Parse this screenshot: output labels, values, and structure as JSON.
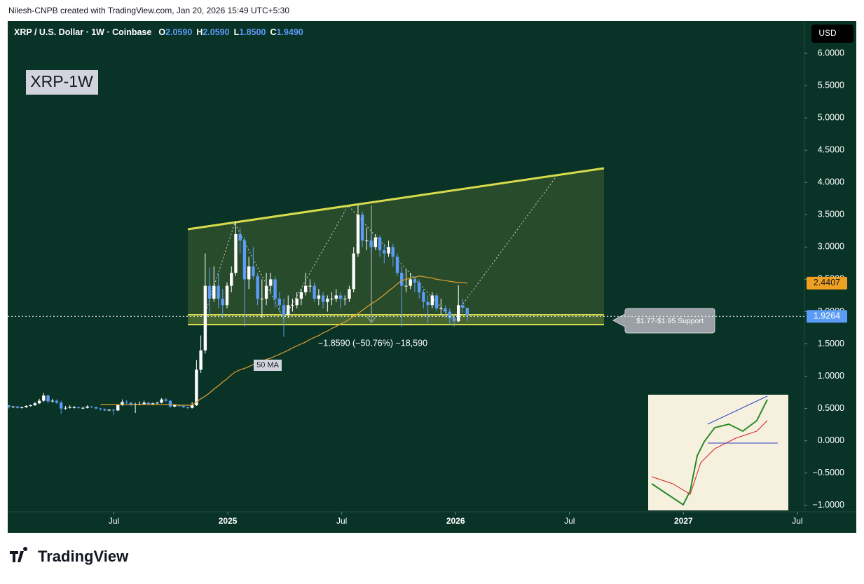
{
  "credit": "Nilesh-CNPB created with TradingView.com, Jan 20, 2026 15:49 UTC+5:30",
  "logo_text": "TradingView",
  "chart_data": {
    "type": "candlestick",
    "symbol": "XRP / U.S. Dollar",
    "interval": "1W",
    "exchange": "Coinbase",
    "ohlc_keys": [
      "O",
      "H",
      "L",
      "C"
    ],
    "ohlc_values": [
      "2.0590",
      "2.0590",
      "1.8500",
      "1.9490"
    ],
    "badge": "XRP-1W",
    "currency": "USD",
    "ma_label": "50 MA",
    "support_label": "$1.77-$1.95 Support",
    "measure_label": "−1.8590 (−50.76%) −18,590",
    "last_price": 1.9264,
    "up_color": "#ffffff",
    "down_color": "#5b9cf6",
    "ma_color": "#e0a030",
    "xlim": [
      "2024-01",
      "2027-08"
    ],
    "xticks": [
      {
        "value": "2024-07",
        "label": "Jul"
      },
      {
        "value": "2025-01",
        "label": "2025"
      },
      {
        "value": "2025-07",
        "label": "Jul"
      },
      {
        "value": "2026-01",
        "label": "2026"
      },
      {
        "value": "2026-07",
        "label": "Jul"
      },
      {
        "value": "2027-01",
        "label": "2027"
      },
      {
        "value": "2027-07",
        "label": "Jul"
      }
    ],
    "ylim": [
      -1.1,
      6.5
    ],
    "yticks": [
      {
        "value": -1,
        "label": "−1.0000"
      },
      {
        "value": -0.5,
        "label": "−0.5000"
      },
      {
        "value": 0,
        "label": "0.0000"
      },
      {
        "value": 0.5,
        "label": "0.5000"
      },
      {
        "value": 1,
        "label": "1.0000"
      },
      {
        "value": 1.5,
        "label": "1.5000"
      },
      {
        "value": 2,
        "label": "2.0000"
      },
      {
        "value": 2.5,
        "label": "2.5000"
      },
      {
        "value": 3,
        "label": "3.0000"
      },
      {
        "value": 3.5,
        "label": "3.5000"
      },
      {
        "value": 4,
        "label": "4.0000"
      },
      {
        "value": 4.5,
        "label": "4.5000"
      },
      {
        "value": 5,
        "label": "5.0000"
      },
      {
        "value": 5.5,
        "label": "5.5000"
      },
      {
        "value": 6,
        "label": "6.0000"
      }
    ],
    "candles": [
      [
        0.6,
        0.62,
        0.56,
        0.57
      ],
      [
        0.57,
        0.58,
        0.53,
        0.55
      ],
      [
        0.55,
        0.56,
        0.5,
        0.52
      ],
      [
        0.52,
        0.54,
        0.51,
        0.53
      ],
      [
        0.53,
        0.54,
        0.5,
        0.51
      ],
      [
        0.51,
        0.53,
        0.5,
        0.52
      ],
      [
        0.52,
        0.55,
        0.51,
        0.54
      ],
      [
        0.54,
        0.56,
        0.53,
        0.55
      ],
      [
        0.55,
        0.6,
        0.54,
        0.58
      ],
      [
        0.58,
        0.65,
        0.57,
        0.62
      ],
      [
        0.62,
        0.74,
        0.6,
        0.7
      ],
      [
        0.7,
        0.71,
        0.58,
        0.61
      ],
      [
        0.61,
        0.65,
        0.59,
        0.62
      ],
      [
        0.62,
        0.64,
        0.57,
        0.59
      ],
      [
        0.59,
        0.62,
        0.42,
        0.5
      ],
      [
        0.5,
        0.54,
        0.48,
        0.51
      ],
      [
        0.51,
        0.55,
        0.5,
        0.52
      ],
      [
        0.52,
        0.54,
        0.5,
        0.52
      ],
      [
        0.52,
        0.53,
        0.49,
        0.51
      ],
      [
        0.51,
        0.53,
        0.49,
        0.51
      ],
      [
        0.51,
        0.55,
        0.5,
        0.53
      ],
      [
        0.53,
        0.54,
        0.51,
        0.52
      ],
      [
        0.52,
        0.53,
        0.49,
        0.5
      ],
      [
        0.5,
        0.51,
        0.47,
        0.49
      ],
      [
        0.49,
        0.5,
        0.46,
        0.47
      ],
      [
        0.47,
        0.49,
        0.46,
        0.48
      ],
      [
        0.48,
        0.49,
        0.4,
        0.47
      ],
      [
        0.47,
        0.56,
        0.46,
        0.55
      ],
      [
        0.55,
        0.64,
        0.54,
        0.6
      ],
      [
        0.6,
        0.63,
        0.57,
        0.59
      ],
      [
        0.59,
        0.6,
        0.54,
        0.56
      ],
      [
        0.56,
        0.59,
        0.43,
        0.57
      ],
      [
        0.57,
        0.61,
        0.55,
        0.57
      ],
      [
        0.57,
        0.62,
        0.56,
        0.59
      ],
      [
        0.59,
        0.6,
        0.56,
        0.57
      ],
      [
        0.57,
        0.59,
        0.55,
        0.58
      ],
      [
        0.58,
        0.6,
        0.57,
        0.59
      ],
      [
        0.59,
        0.66,
        0.58,
        0.64
      ],
      [
        0.64,
        0.66,
        0.6,
        0.62
      ],
      [
        0.62,
        0.63,
        0.51,
        0.53
      ],
      [
        0.53,
        0.56,
        0.52,
        0.55
      ],
      [
        0.55,
        0.56,
        0.52,
        0.54
      ],
      [
        0.54,
        0.55,
        0.51,
        0.52
      ],
      [
        0.52,
        0.53,
        0.49,
        0.51
      ],
      [
        0.51,
        0.6,
        0.5,
        0.55
      ],
      [
        0.55,
        1.25,
        0.54,
        1.1
      ],
      [
        1.1,
        1.63,
        1.05,
        1.4
      ],
      [
        1.4,
        2.9,
        1.35,
        2.4
      ],
      [
        2.4,
        2.68,
        1.95,
        2.2
      ],
      [
        2.2,
        2.7,
        2.15,
        2.4
      ],
      [
        2.4,
        2.6,
        2.05,
        2.2
      ],
      [
        2.2,
        2.35,
        1.9,
        2.1
      ],
      [
        2.1,
        2.45,
        2.05,
        2.4
      ],
      [
        2.4,
        2.7,
        2.3,
        2.6
      ],
      [
        2.6,
        3.4,
        2.55,
        3.2
      ],
      [
        3.2,
        3.3,
        2.9,
        3.1
      ],
      [
        3.1,
        3.15,
        1.77,
        2.5
      ],
      [
        2.5,
        2.85,
        2.35,
        2.7
      ],
      [
        2.7,
        3.0,
        2.5,
        2.55
      ],
      [
        2.55,
        2.6,
        2.1,
        2.2
      ],
      [
        2.2,
        2.5,
        1.9,
        2.2
      ],
      [
        2.2,
        2.6,
        2.1,
        2.4
      ],
      [
        2.4,
        2.6,
        2.3,
        2.5
      ],
      [
        2.5,
        2.55,
        2.05,
        2.2
      ],
      [
        2.2,
        2.3,
        2.0,
        2.1
      ],
      [
        2.1,
        2.2,
        1.61,
        1.95
      ],
      [
        1.95,
        2.25,
        1.9,
        2.1
      ],
      [
        2.1,
        2.2,
        2.0,
        2.1
      ],
      [
        2.1,
        2.3,
        2.05,
        2.2
      ],
      [
        2.2,
        2.35,
        2.1,
        2.3
      ],
      [
        2.3,
        2.6,
        2.25,
        2.4
      ],
      [
        2.4,
        2.5,
        2.3,
        2.4
      ],
      [
        2.4,
        2.45,
        2.15,
        2.2
      ],
      [
        2.2,
        2.35,
        2.1,
        2.25
      ],
      [
        2.25,
        2.3,
        2.05,
        2.15
      ],
      [
        2.15,
        2.25,
        2.0,
        2.2
      ],
      [
        2.2,
        2.3,
        2.1,
        2.2
      ],
      [
        2.2,
        2.35,
        2.15,
        2.25
      ],
      [
        2.25,
        2.3,
        2.05,
        2.2
      ],
      [
        2.2,
        2.25,
        2.1,
        2.2
      ],
      [
        2.2,
        2.4,
        2.15,
        2.35
      ],
      [
        2.35,
        3.0,
        2.3,
        2.9
      ],
      [
        2.9,
        3.65,
        2.85,
        3.5
      ],
      [
        3.5,
        3.55,
        3.0,
        3.1
      ],
      [
        3.1,
        3.3,
        2.95,
        3.1
      ],
      [
        3.1,
        3.2,
        2.9,
        3.0
      ],
      [
        3.0,
        3.2,
        2.95,
        3.15
      ],
      [
        3.15,
        3.18,
        2.85,
        2.95
      ],
      [
        2.95,
        3.05,
        2.75,
        2.9
      ],
      [
        2.9,
        3.1,
        2.85,
        3.0
      ],
      [
        3.0,
        3.05,
        2.7,
        2.85
      ],
      [
        2.85,
        2.9,
        2.55,
        2.6
      ],
      [
        2.6,
        2.7,
        1.77,
        2.4
      ],
      [
        2.4,
        2.65,
        2.3,
        2.4
      ],
      [
        2.4,
        2.6,
        2.35,
        2.5
      ],
      [
        2.5,
        2.55,
        2.3,
        2.45
      ],
      [
        2.45,
        2.5,
        2.2,
        2.3
      ],
      [
        2.3,
        2.35,
        2.05,
        2.15
      ],
      [
        2.15,
        2.25,
        1.82,
        2.1
      ],
      [
        2.1,
        2.3,
        2.05,
        2.25
      ],
      [
        2.25,
        2.28,
        2.0,
        2.05
      ],
      [
        2.05,
        2.2,
        1.95,
        2.05
      ],
      [
        2.05,
        2.1,
        1.9,
        2.0
      ],
      [
        2.0,
        2.05,
        1.8,
        1.9
      ],
      [
        1.9,
        1.95,
        1.77,
        1.85
      ],
      [
        1.85,
        2.41,
        1.84,
        2.1
      ],
      [
        2.1,
        2.2,
        1.98,
        2.06
      ],
      [
        2.059,
        2.059,
        1.85,
        1.949
      ]
    ],
    "ma": [
      null,
      null,
      null,
      null,
      null,
      null,
      null,
      null,
      null,
      null,
      null,
      null,
      null,
      null,
      null,
      null,
      null,
      null,
      null,
      null,
      null,
      null,
      null,
      0.56,
      0.56,
      0.56,
      0.56,
      0.56,
      0.56,
      0.56,
      0.56,
      0.56,
      0.56,
      0.56,
      0.56,
      0.56,
      0.56,
      0.56,
      0.56,
      0.56,
      0.56,
      0.55,
      0.55,
      0.55,
      0.55,
      0.6,
      0.65,
      0.69,
      0.74,
      0.8,
      0.85,
      0.91,
      0.96,
      1.02,
      1.07,
      1.1,
      1.12,
      1.15,
      1.18,
      1.2,
      1.23,
      1.26,
      1.28,
      1.31,
      1.34,
      1.37,
      1.4,
      1.44,
      1.47,
      1.5,
      1.53,
      1.57,
      1.6,
      1.63,
      1.67,
      1.7,
      1.74,
      1.77,
      1.81,
      1.84,
      1.88,
      1.93,
      1.97,
      2.02,
      2.07,
      2.12,
      2.16,
      2.21,
      2.26,
      2.32,
      2.37,
      2.43,
      2.48,
      2.5,
      2.52,
      2.53,
      2.55,
      2.54,
      2.53,
      2.52,
      2.5,
      2.49,
      2.48,
      2.47,
      2.46,
      2.45,
      2.45,
      2.4407
    ]
  }
}
